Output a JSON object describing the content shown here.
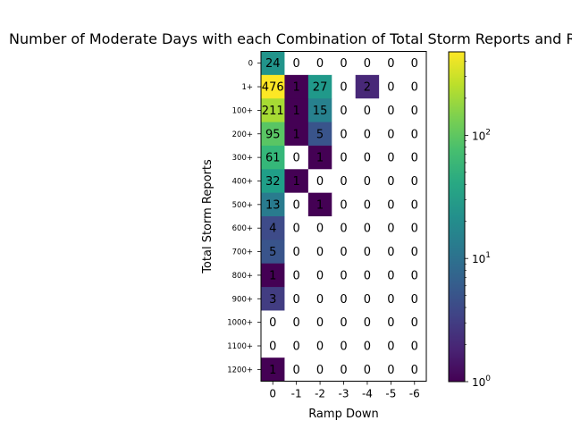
{
  "chart_data": {
    "type": "heatmap",
    "title": "Number of Moderate Days with each Combination of Total Storm Reports and Ramp Down",
    "xlabel": "Ramp Down",
    "ylabel": "Total Storm Reports",
    "x_categories": [
      "0",
      "-1",
      "-2",
      "-3",
      "-4",
      "-5",
      "-6"
    ],
    "y_categories": [
      "0",
      "1+",
      "100+",
      "200+",
      "300+",
      "400+",
      "500+",
      "600+",
      "700+",
      "800+",
      "900+",
      "1000+",
      "1100+",
      "1200+"
    ],
    "values": [
      [
        24,
        0,
        0,
        0,
        0,
        0,
        0
      ],
      [
        476,
        1,
        27,
        0,
        2,
        0,
        0
      ],
      [
        211,
        1,
        15,
        0,
        0,
        0,
        0
      ],
      [
        95,
        1,
        5,
        0,
        0,
        0,
        0
      ],
      [
        61,
        0,
        1,
        0,
        0,
        0,
        0
      ],
      [
        32,
        1,
        0,
        0,
        0,
        0,
        0
      ],
      [
        13,
        0,
        1,
        0,
        0,
        0,
        0
      ],
      [
        4,
        0,
        0,
        0,
        0,
        0,
        0
      ],
      [
        5,
        0,
        0,
        0,
        0,
        0,
        0
      ],
      [
        1,
        0,
        0,
        0,
        0,
        0,
        0
      ],
      [
        3,
        0,
        0,
        0,
        0,
        0,
        0
      ],
      [
        0,
        0,
        0,
        0,
        0,
        0,
        0
      ],
      [
        0,
        0,
        0,
        0,
        0,
        0,
        0
      ],
      [
        1,
        0,
        0,
        0,
        0,
        0,
        0
      ]
    ],
    "colormap": "viridis",
    "color_scale": "log",
    "colorbar_range": [
      1,
      476
    ],
    "colorbar_ticks": [
      {
        "value": 1,
        "base": "10",
        "exp": "0"
      },
      {
        "value": 10,
        "base": "10",
        "exp": "1"
      },
      {
        "value": 100,
        "base": "10",
        "exp": "2"
      }
    ],
    "zero_color": "#ffffff",
    "grid": false
  }
}
